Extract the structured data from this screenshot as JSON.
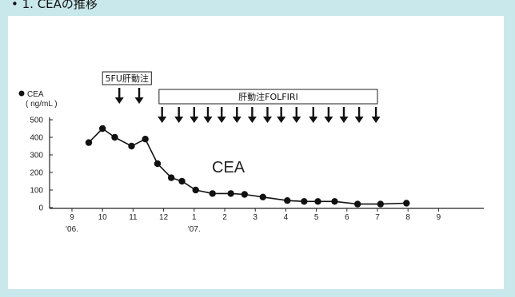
{
  "header": {
    "caption": "• 1. CEAの推移"
  },
  "chart_data": {
    "type": "line",
    "legend": {
      "marker_label": "CEA",
      "unit_label": "( ng/mL )"
    },
    "series_label": "CEA",
    "yticks": [
      0,
      100,
      200,
      300,
      400,
      500
    ],
    "ylim": [
      0,
      520
    ],
    "month_ticks": [
      "9",
      "10",
      "11",
      "12",
      "1",
      "2",
      "3",
      "4",
      "5",
      "6",
      "7",
      "8",
      "9"
    ],
    "year_labels": [
      {
        "label": "'06.",
        "at_month": 0
      },
      {
        "label": "'07.",
        "at_month": 4
      }
    ],
    "x_unit": "month index from Sep 2006 (0 = Sep '06)",
    "series": [
      {
        "x": [
          0.55,
          1.0,
          1.4,
          1.95,
          2.4,
          2.8,
          3.25,
          3.6,
          4.05,
          4.6,
          5.2,
          5.65,
          6.25,
          7.05,
          7.6,
          8.05,
          8.6,
          9.35,
          10.1,
          10.95
        ],
        "values": [
          370,
          450,
          400,
          350,
          390,
          250,
          170,
          150,
          100,
          80,
          80,
          75,
          60,
          40,
          35,
          35,
          35,
          20,
          20,
          25
        ]
      }
    ],
    "treatments": [
      {
        "label": "5FU肝動注",
        "x_start": 1.0,
        "x_end": 2.6,
        "arrows_x": [
          1.55,
          2.2
        ]
      },
      {
        "label": "肝動注FOLFIRI",
        "x_start": 2.85,
        "x_end": 10.0,
        "arrows_x": [
          2.95,
          3.5,
          4.0,
          4.45,
          4.9,
          5.4,
          5.9,
          6.4,
          6.85,
          7.35,
          7.9,
          8.4,
          8.9,
          9.4,
          9.95
        ]
      }
    ]
  }
}
